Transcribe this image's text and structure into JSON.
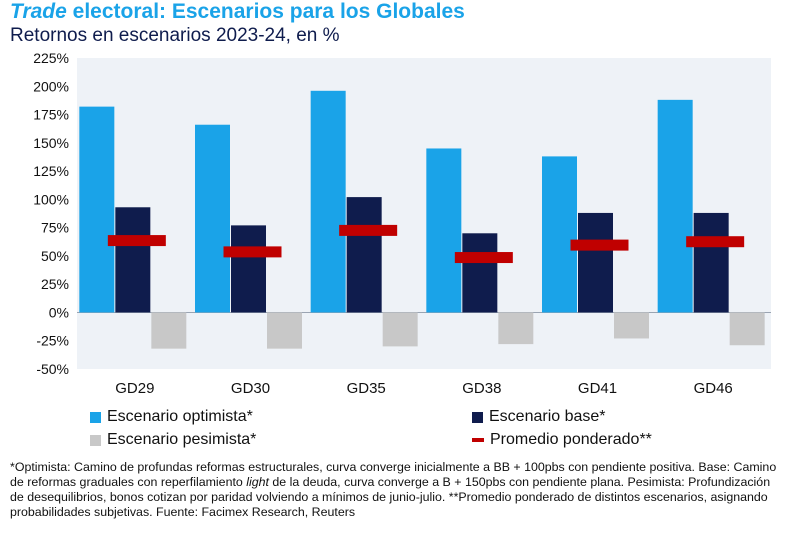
{
  "title": {
    "italic": "Trade",
    "rest": " electoral: Escenarios para los Globales"
  },
  "subtitle": "Retornos en escenarios 2023-24, en %",
  "chart_data": {
    "type": "bar",
    "title": "Trade electoral: Escenarios para los Globales",
    "subtitle": "Retornos en escenarios 2023-24, en %",
    "categories": [
      "GD29",
      "GD30",
      "GD35",
      "GD38",
      "GD41",
      "GD46"
    ],
    "ylim": [
      -50,
      225
    ],
    "yticks": [
      225,
      200,
      175,
      150,
      125,
      100,
      75,
      50,
      25,
      0,
      -25,
      -50
    ],
    "ytick_labels": [
      "225%",
      "200%",
      "175%",
      "150%",
      "125%",
      "100%",
      "75%",
      "50%",
      "25%",
      "0%",
      "-25%",
      "-50%"
    ],
    "series": [
      {
        "name": "Escenario optimista*",
        "color": "#1aa3e8",
        "values": [
          182,
          166,
          196,
          145,
          138,
          188
        ]
      },
      {
        "name": "Escenario base*",
        "color": "#0f1c4d",
        "values": [
          93,
          77,
          102,
          70,
          88,
          88
        ]
      },
      {
        "name": "Escenario pesimista*",
        "color": "#c8c8c8",
        "values": [
          -32,
          -32,
          -30,
          -28,
          -23,
          -29
        ]
      }
    ],
    "markers": {
      "name": "Promedio ponderado**",
      "color": "#c00000",
      "values": [
        64,
        54,
        73,
        49,
        60,
        63
      ]
    }
  },
  "legend": {
    "optimista": "Escenario optimista*",
    "base": "Escenario base*",
    "pesimista": "Escenario pesimista*",
    "promedio": "Promedio ponderado**"
  },
  "footnote": {
    "part1": "*Optimista: Camino de profundas reformas estructurales, curva converge inicialmente a BB + 100pbs con pendiente positiva. Base: Camino de reformas graduales con reperfilamiento ",
    "italic": "light",
    "part2": " de la deuda, curva converge a B + 150pbs con pendiente plana. Pesimista: Profundización de desequilibrios, bonos cotizan por paridad volviendo a mínimos de junio-julio. **Promedio ponderado de distintos escenarios, asignando probabilidades subjetivas. Fuente: Facimex Research, Reuters"
  }
}
